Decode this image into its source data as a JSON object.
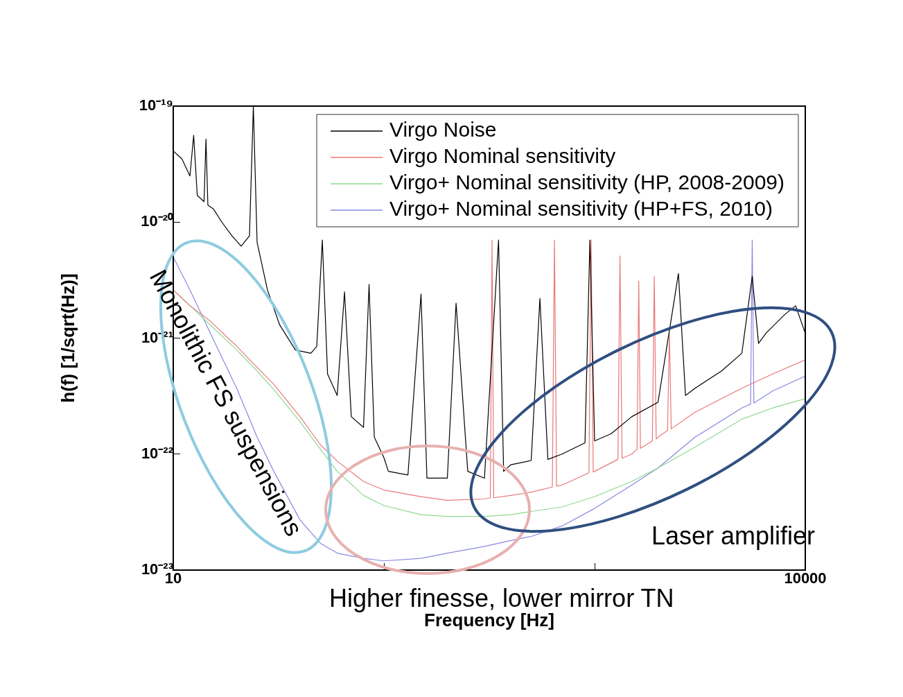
{
  "chart_data": {
    "type": "line",
    "xlabel": "Frequency [Hz]",
    "ylabel": "h(f) [1/sqrt(Hz)]",
    "log": "xy",
    "grid": false,
    "legend": "top right",
    "marker": "none",
    "line_style": "solid",
    "xlim": [
      10,
      10000
    ],
    "xticks": [
      10,
      {
        "value": 100,
        "label": null
      },
      {
        "value": 1000,
        "label": null
      },
      10000
    ],
    "ylim": [
      1e-23,
      1e-19
    ],
    "yticks": [
      {
        "value": 1e-23,
        "label": "10⁻²³"
      },
      {
        "value": 1e-22,
        "label": "10⁻²²"
      },
      {
        "value": 1e-21,
        "label": "10⁻²¹"
      },
      {
        "value": 1e-20,
        "label": "10⁻²⁰"
      },
      {
        "value": 1e-19,
        "label": "10⁻¹⁹"
      }
    ],
    "annotations": [
      "Monolithic FS suspensions",
      "Higher finesse, lower mirror TN",
      "Laser amplifier"
    ],
    "series": [
      {
        "name": "Virgo Noise",
        "color": "#000000",
        "x": [
          10,
          11,
          12,
          12.5,
          13,
          14,
          14.3,
          14.6,
          15.5,
          17,
          19,
          21,
          23,
          24,
          25,
          28,
          32,
          38,
          45,
          48,
          51,
          54,
          60,
          65,
          70,
          80,
          85,
          90,
          100,
          105,
          130,
          150,
          160,
          200,
          220,
          250,
          300,
          350,
          370,
          400,
          500,
          550,
          600,
          700,
          900,
          950,
          1000,
          1200,
          1500,
          2000,
          2500,
          2700,
          3000,
          4000,
          5000,
          5600,
          6000,
          6500,
          8000,
          9000,
          10000
        ],
        "values": [
          4.1e-20,
          3.5e-20,
          2.5e-20,
          5.6e-20,
          1.7e-20,
          1.5e-20,
          5.2e-20,
          1.4e-20,
          1.3e-20,
          1e-20,
          7.6e-21,
          6.2e-21,
          7.6e-21,
          1e-19,
          6.7e-21,
          2.6e-21,
          1.3e-21,
          7.9e-22,
          7.4e-22,
          8.5e-22,
          7e-21,
          4.9e-22,
          3.2e-22,
          2.5e-21,
          2.1e-22,
          1.7e-22,
          2.9e-21,
          1.4e-22,
          9.3e-23,
          7.1e-23,
          6.6e-23,
          2.4e-21,
          6.2e-23,
          6.2e-23,
          2e-21,
          7.1e-23,
          6.2e-23,
          7e-21,
          7.1e-23,
          8.1e-23,
          8.8e-23,
          2.2e-21,
          9e-23,
          1e-22,
          1.25e-22,
          7e-21,
          1.3e-22,
          1.5e-22,
          2.1e-22,
          2.8e-22,
          3.6e-21,
          3.2e-22,
          3.7e-22,
          5.2e-22,
          7.4e-22,
          3.4e-21,
          9e-22,
          1.1e-21,
          1.6e-21,
          1.9e-21,
          1.1e-21
        ]
      },
      {
        "name": "Virgo Nominal sensitivity",
        "color": "#e87878",
        "x": [
          10,
          12,
          15,
          20,
          25,
          30,
          40,
          50,
          60,
          80,
          100,
          150,
          200,
          300,
          320,
          326,
          332,
          400,
          500,
          630,
          645,
          660,
          700,
          940,
          963,
          985,
          1000,
          1290,
          1320,
          1350,
          1500,
          1590,
          1620,
          1650,
          1880,
          1920,
          1960,
          2000,
          2220,
          2265,
          2310,
          3000,
          5000,
          7000,
          10000
        ],
        "values": [
          2.6e-21,
          1.9e-21,
          1.4e-21,
          8.5e-22,
          5.6e-22,
          4e-22,
          2.1e-22,
          1.2e-22,
          8.7e-23,
          5.8e-23,
          4.9e-23,
          4.3e-23,
          4e-23,
          4.1e-23,
          4.2e-23,
          7e-21,
          4.2e-23,
          4.4e-23,
          4.7e-23,
          5.2e-23,
          7e-21,
          5.3e-23,
          5.4e-23,
          6.9e-23,
          7e-21,
          7e-23,
          7.1e-23,
          9e-23,
          5.1e-21,
          9.2e-23,
          1e-22,
          1.1e-22,
          3.1e-21,
          1.12e-22,
          1.3e-22,
          3.4e-21,
          1.35e-22,
          1.4e-22,
          1.6e-22,
          1.1e-21,
          1.65e-22,
          2.3e-22,
          3.7e-22,
          4.9e-22,
          6.5e-22
        ]
      },
      {
        "name": "Virgo+ Nominal sensitivity (HP, 2008-2009)",
        "color": "#8fd88f",
        "x": [
          10,
          12,
          15,
          20,
          25,
          30,
          40,
          50,
          60,
          80,
          100,
          150,
          200,
          300,
          400,
          500,
          700,
          1000,
          1500,
          2000,
          3000,
          5000,
          7000,
          10000
        ],
        "values": [
          2.6e-21,
          1.9e-21,
          1.3e-21,
          7.9e-22,
          5.2e-22,
          3.6e-22,
          1.9e-22,
          1.1e-22,
          7.1e-23,
          4.4e-23,
          3.6e-23,
          3e-23,
          2.9e-23,
          2.9e-23,
          3e-23,
          3.2e-23,
          3.5e-23,
          4.3e-23,
          5.8e-23,
          7.6e-23,
          1.15e-22,
          2e-22,
          2.5e-22,
          3e-22
        ]
      },
      {
        "name": "Virgo+ Nominal sensitivity (HP+FS, 2010)",
        "color": "#8888e0",
        "x": [
          10,
          12,
          15,
          20,
          25,
          30,
          40,
          50,
          60,
          80,
          100,
          150,
          200,
          300,
          400,
          500,
          700,
          1000,
          1500,
          2000,
          3000,
          5000,
          5500,
          5600,
          5700,
          7000,
          10000
        ],
        "values": [
          5e-21,
          2.6e-21,
          1.1e-21,
          3.7e-22,
          1.4e-22,
          7.1e-23,
          2.7e-23,
          1.7e-23,
          1.4e-23,
          1.26e-23,
          1.2e-23,
          1.26e-23,
          1.4e-23,
          1.6e-23,
          1.8e-23,
          1.95e-23,
          2.4e-23,
          3.4e-23,
          5.4e-23,
          7.6e-23,
          1.4e-22,
          2.5e-22,
          2.7e-22,
          7e-21,
          2.75e-22,
          3.5e-22,
          4.7e-22
        ]
      }
    ]
  }
}
